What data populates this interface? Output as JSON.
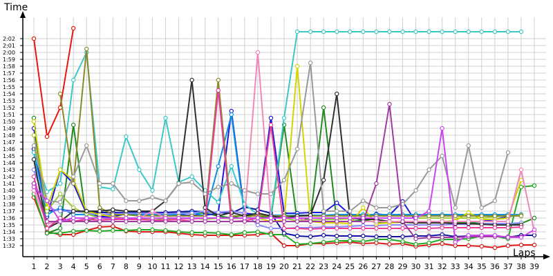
{
  "chart_data": {
    "type": "line",
    "ylabel": "Time",
    "xlabel": "Laps",
    "x": [
      1,
      2,
      3,
      4,
      5,
      6,
      7,
      8,
      9,
      10,
      11,
      12,
      13,
      14,
      15,
      16,
      17,
      18,
      19,
      20,
      21,
      22,
      23,
      24,
      25,
      26,
      27,
      28,
      29,
      30,
      31,
      32,
      33,
      34,
      35,
      36,
      37,
      38,
      39
    ],
    "xlim": [
      1,
      39
    ],
    "ylim": [
      90.5,
      123
    ],
    "y_ticks": [
      {
        "v": 92,
        "label": "1:32"
      },
      {
        "v": 93,
        "label": "1:33"
      },
      {
        "v": 94,
        "label": "1:34"
      },
      {
        "v": 95,
        "label": "1:35"
      },
      {
        "v": 96,
        "label": "1:36"
      },
      {
        "v": 97,
        "label": "1:37"
      },
      {
        "v": 98,
        "label": "1:38"
      },
      {
        "v": 99,
        "label": "1:39"
      },
      {
        "v": 100,
        "label": "1:40"
      },
      {
        "v": 101,
        "label": "1:41"
      },
      {
        "v": 102,
        "label": "1:42"
      },
      {
        "v": 103,
        "label": "1:43"
      },
      {
        "v": 104,
        "label": "1:44"
      },
      {
        "v": 105,
        "label": "1:45"
      },
      {
        "v": 106,
        "label": "1:46"
      },
      {
        "v": 107,
        "label": "1:47"
      },
      {
        "v": 108,
        "label": "1:48"
      },
      {
        "v": 109,
        "label": "1:49"
      },
      {
        "v": 110,
        "label": "1:50"
      },
      {
        "v": 111,
        "label": "1:51"
      },
      {
        "v": 112,
        "label": "1:52"
      },
      {
        "v": 113,
        "label": "1:53"
      },
      {
        "v": 114,
        "label": "1:54"
      },
      {
        "v": 115,
        "label": "1:55"
      },
      {
        "v": 116,
        "label": "1:56"
      },
      {
        "v": 117,
        "label": "1:57"
      },
      {
        "v": 118,
        "label": "1:58"
      },
      {
        "v": 119,
        "label": "1:59"
      },
      {
        "v": 120,
        "label": "2:00"
      },
      {
        "v": 121,
        "label": "2:01"
      },
      {
        "v": 122,
        "label": "2:02"
      }
    ],
    "grid": true,
    "series": [
      {
        "color": "#e8150b",
        "values": [
          122,
          107.8,
          112,
          123.5,
          null,
          null,
          null,
          null,
          null,
          null,
          null,
          null,
          null,
          null,
          null,
          null,
          null,
          null,
          null,
          null,
          null,
          null,
          null,
          null,
          null,
          null,
          null,
          null,
          null,
          null,
          null,
          null,
          null,
          null,
          null,
          null,
          null,
          null,
          null
        ]
      },
      {
        "color": "#d91a1a",
        "values": [
          99,
          94,
          93.6,
          93.6,
          94.2,
          94.7,
          94.8,
          94.1,
          94,
          94,
          94,
          93.8,
          93.6,
          93.5,
          93.5,
          93.5,
          93.5,
          93.6,
          93.8,
          92,
          92,
          92.3,
          92.3,
          92.4,
          92.5,
          92.3,
          92.4,
          92.2,
          92.3,
          91.9,
          92.1,
          92.3,
          92,
          92,
          91.9,
          91.7,
          92,
          92.1,
          92.1
        ]
      },
      {
        "color": "#22aa22",
        "values": [
          99.5,
          93.8,
          93.8,
          94.1,
          94.2,
          94.1,
          94.2,
          94.2,
          94.3,
          94.3,
          94.2,
          94,
          93.9,
          93.9,
          93.8,
          93.6,
          93.9,
          94,
          93.6,
          93.6,
          92.2,
          92.3,
          92.5,
          92.7,
          92.7,
          92.6,
          92.9,
          92.9,
          92.6,
          92.2,
          92.4,
          92.9,
          92.9,
          93,
          93.4,
          93.4,
          93,
          100.5,
          100.7
        ]
      },
      {
        "color": "#1f8a1f",
        "values": [
          110.5,
          93.8,
          94.5,
          109.5,
          95.5,
          96.3,
          96.5,
          96.8,
          96.8,
          96.6,
          96.7,
          96.7,
          96.8,
          96.7,
          96.3,
          96,
          96.5,
          96.3,
          96,
          109.5,
          95.5,
          96,
          112,
          95.5,
          95.5,
          95.7,
          95.4,
          95.4,
          95.5,
          95.4,
          95.4,
          95.4,
          95.4,
          95.4,
          95.2,
          95,
          95,
          95.2,
          96
        ]
      },
      {
        "color": "#1a1ad6",
        "values": [
          109,
          96.2,
          103,
          101,
          96.6,
          96.2,
          96.2,
          96.6,
          96.5,
          96.7,
          96.8,
          96.4,
          96.4,
          96.4,
          96.7,
          111.5,
          96.7,
          96.5,
          110.5,
          96.7,
          96.7,
          96.8,
          96.8,
          98.2,
          96.5,
          96.2,
          96.6,
          96.4,
          98.4,
          95.5,
          95.5,
          95.5,
          95.5,
          95.5,
          95.5,
          95.8,
          96.2,
          96.5,
          null
        ]
      },
      {
        "color": "#1010a0",
        "values": [
          106,
          97,
          97.2,
          97,
          96.8,
          96.8,
          96.8,
          96.8,
          96.8,
          96.8,
          96.8,
          96.9,
          97,
          96.9,
          96.8,
          96.7,
          97.6,
          97.2,
          96.7,
          93.8,
          93.4,
          93.3,
          93.5,
          93.4,
          93.4,
          93.4,
          93.3,
          93.3,
          93.3,
          93.4,
          93.4,
          93.6,
          93.3,
          93.4,
          93.5,
          93.4,
          93.2,
          93.5,
          93.5
        ]
      },
      {
        "color": "#0a90e0",
        "values": [
          105.5,
          96.5,
          97.5,
          96.5,
          96.5,
          96.5,
          96.5,
          96.5,
          96.5,
          96.5,
          96.5,
          96.5,
          96.8,
          96.3,
          103.5,
          111,
          96.3,
          96.4,
          96.4,
          96.4,
          96.4,
          96.4,
          96.4,
          96.5,
          96.5,
          96.5,
          96.5,
          96.5,
          96.5,
          96.5,
          96.5,
          96.5,
          96.5,
          96.5,
          96.5,
          96.5,
          96.5,
          96.5,
          null
        ]
      },
      {
        "color": "#3ac8c8",
        "values": [
          105.5,
          99.8,
          101,
          116,
          120,
          100.5,
          100.2,
          107.8,
          103,
          100,
          110.5,
          101.2,
          102,
          100,
          98.3,
          103.5,
          98,
          96.5,
          96.2,
          110.5,
          123,
          123,
          123,
          123,
          123,
          123,
          123,
          123,
          123,
          123,
          123,
          123,
          123,
          123,
          123,
          123,
          123,
          123,
          null
        ]
      },
      {
        "color": "#8888ff",
        "values": [
          103,
          97.5,
          97,
          97,
          96.7,
          96.5,
          96.6,
          96.7,
          96.7,
          96.7,
          96.6,
          96.7,
          96.7,
          97,
          96.8,
          97,
          96.7,
          95,
          94.5,
          94.5,
          94.6,
          94.6,
          94.7,
          94.7,
          94.8,
          94.9,
          94.9,
          95,
          95,
          95,
          95,
          95,
          95.1,
          95.1,
          95.2,
          95.2,
          95.2,
          95.3,
          null
        ]
      },
      {
        "color": "#9bc83c",
        "values": [
          108,
          97,
          99.5,
          97.5,
          96.6,
          96,
          95.9,
          95.8,
          95.8,
          96,
          95.8,
          95.9,
          96,
          95.8,
          96,
          95.9,
          96,
          96.5,
          96.2,
          96,
          95.6,
          95.7,
          95.8,
          95.8,
          95.9,
          96,
          96,
          96,
          96,
          96,
          96,
          96,
          96,
          96,
          96,
          96.2,
          96.3,
          96.4,
          null
        ]
      },
      {
        "color": "#d4d400",
        "values": [
          110,
          97.5,
          103,
          101.5,
          97,
          96.5,
          96.2,
          96,
          96,
          96,
          96,
          96,
          96,
          96,
          96,
          96,
          96,
          96,
          95.5,
          95.7,
          118,
          95.5,
          95.3,
          95.3,
          95.2,
          97.5,
          95.2,
          95.3,
          95.4,
          95.4,
          95.5,
          95.5,
          95.6,
          96.8,
          95.8,
          95.8,
          96,
          101.5,
          null
        ]
      },
      {
        "color": "#8a8a2a",
        "values": [
          null,
          null,
          114,
          101,
          120.5,
          97.5,
          96.5,
          96.5,
          96.3,
          96.3,
          96.3,
          96.3,
          96.3,
          96.3,
          116,
          96.3,
          96.3,
          96.3,
          96.3,
          96.3,
          96.3,
          96.3,
          96.3,
          96.3,
          96.3,
          96.3,
          96.3,
          96.3,
          96.3,
          96.3,
          96.3,
          96.3,
          96.3,
          96.3,
          96.3,
          96.3,
          96.3,
          96.3,
          null
        ]
      },
      {
        "color": "#303030",
        "values": [
          104.5,
          94.5,
          95.5,
          97,
          97,
          97,
          97.2,
          97,
          97,
          97,
          98.5,
          101,
          116,
          97.5,
          96.3,
          96.8,
          96.3,
          96.7,
          96.3,
          96,
          96.3,
          96.4,
          101.5,
          114,
          96,
          95.8,
          95.8,
          95.5,
          95.4,
          95.3,
          95.3,
          95.3,
          95.2,
          95.2,
          95.1,
          95,
          95,
          95,
          null
        ]
      },
      {
        "color": "#999999",
        "values": [
          106.5,
          98.5,
          98.3,
          102,
          106.5,
          101,
          101,
          98.5,
          98.5,
          99,
          98.5,
          101,
          101.2,
          99.5,
          100.5,
          101,
          100,
          99.5,
          99.5,
          101.5,
          106,
          118.5,
          97,
          97,
          97,
          98.5,
          97.5,
          97.5,
          98,
          100,
          103,
          105,
          97.5,
          106.5,
          97.5,
          98.5,
          105.5,
          null,
          null
        ]
      },
      {
        "color": "#ee88bb",
        "values": [
          100,
          95.2,
          95.5,
          95.5,
          96,
          96,
          96,
          96,
          96,
          97,
          96,
          96,
          95.8,
          96,
          96,
          96,
          96,
          120,
          96,
          96,
          96,
          95.5,
          95.5,
          95.5,
          95.5,
          95.5,
          95.5,
          95.5,
          95.5,
          95.5,
          95.5,
          95.5,
          95.5,
          95.5,
          95.5,
          95.5,
          95.5,
          103,
          94
        ]
      },
      {
        "color": "#e8409a",
        "values": [
          102,
          94.5,
          96,
          95.5,
          95.8,
          95.7,
          95.8,
          95.8,
          95.8,
          95.7,
          95.7,
          95.8,
          95.5,
          95.5,
          114.5,
          95.5,
          95.6,
          96,
          109.5,
          94.5,
          94.5,
          94.4,
          94.5,
          94.5,
          94.5,
          94.5,
          94.5,
          94.5,
          94.5,
          94.5,
          94.5,
          94.6,
          94.6,
          94.6,
          94.6,
          94.6,
          94.6,
          94.7,
          null
        ]
      },
      {
        "color": "#a03aa0",
        "values": [
          101,
          95.5,
          95.5,
          95.5,
          95.5,
          95.5,
          95.5,
          95.5,
          95.5,
          95.5,
          95.5,
          95.5,
          95.5,
          95.5,
          95.5,
          95.5,
          95.5,
          95.5,
          95.5,
          95.5,
          95.5,
          95.5,
          95.5,
          95.5,
          95.5,
          95.5,
          101,
          112.5,
          95.5,
          93,
          93.2,
          93.2,
          93.2,
          93.3,
          93.3,
          93.3,
          93.3,
          93.3,
          null
        ]
      },
      {
        "color": "#cc44ee",
        "values": [
          100.5,
          98.5,
          95.5,
          96,
          96,
          96,
          96,
          96,
          96,
          96,
          96,
          96,
          96,
          96,
          96,
          96,
          96,
          96,
          96,
          96,
          96,
          96,
          96,
          96,
          96,
          96,
          96,
          96,
          96,
          96,
          97,
          109,
          92.5,
          93.5,
          93.5,
          93.5,
          93.2,
          93.2,
          94.3
        ]
      }
    ]
  }
}
